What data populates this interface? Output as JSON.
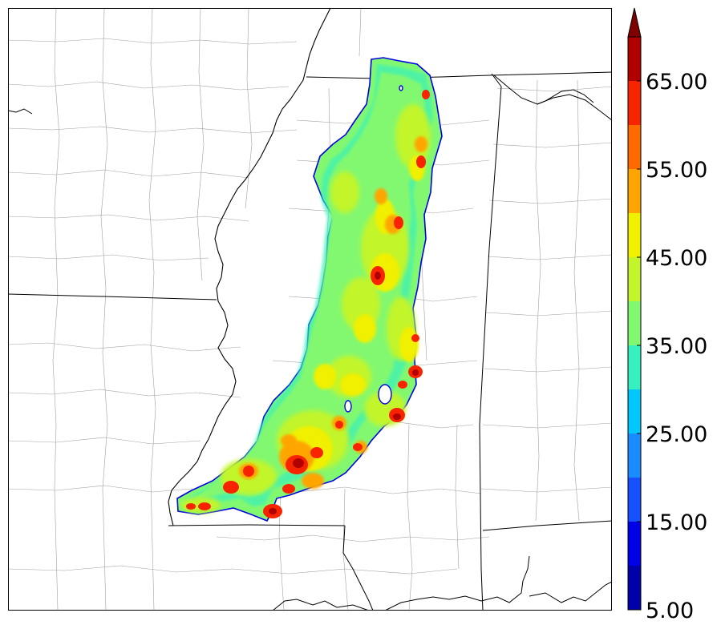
{
  "map": {
    "field": "composite-reflectivity-swath",
    "background": "#ffffff",
    "state_line_color": "#000000",
    "county_line_color": "#9a9a9a"
  },
  "colorbar": {
    "extend": "max",
    "levels": [
      5,
      10,
      15,
      20,
      25,
      30,
      35,
      40,
      45,
      50,
      55,
      60,
      65,
      70
    ],
    "colors": [
      "#0000a8",
      "#0000e6",
      "#1650ff",
      "#1a8cff",
      "#00c8ff",
      "#36f0c0",
      "#82f870",
      "#c2f52a",
      "#f0f000",
      "#ffa500",
      "#ff6a00",
      "#f82400",
      "#b00000"
    ],
    "extend_color": "#800000",
    "tick_labels": [
      {
        "label": "5.00",
        "value": 5
      },
      {
        "label": "15.00",
        "value": 15
      },
      {
        "label": "25.00",
        "value": 25
      },
      {
        "label": "35.00",
        "value": 35
      },
      {
        "label": "45.00",
        "value": 45
      },
      {
        "label": "55.00",
        "value": 55
      },
      {
        "label": "65.00",
        "value": 65
      }
    ]
  }
}
